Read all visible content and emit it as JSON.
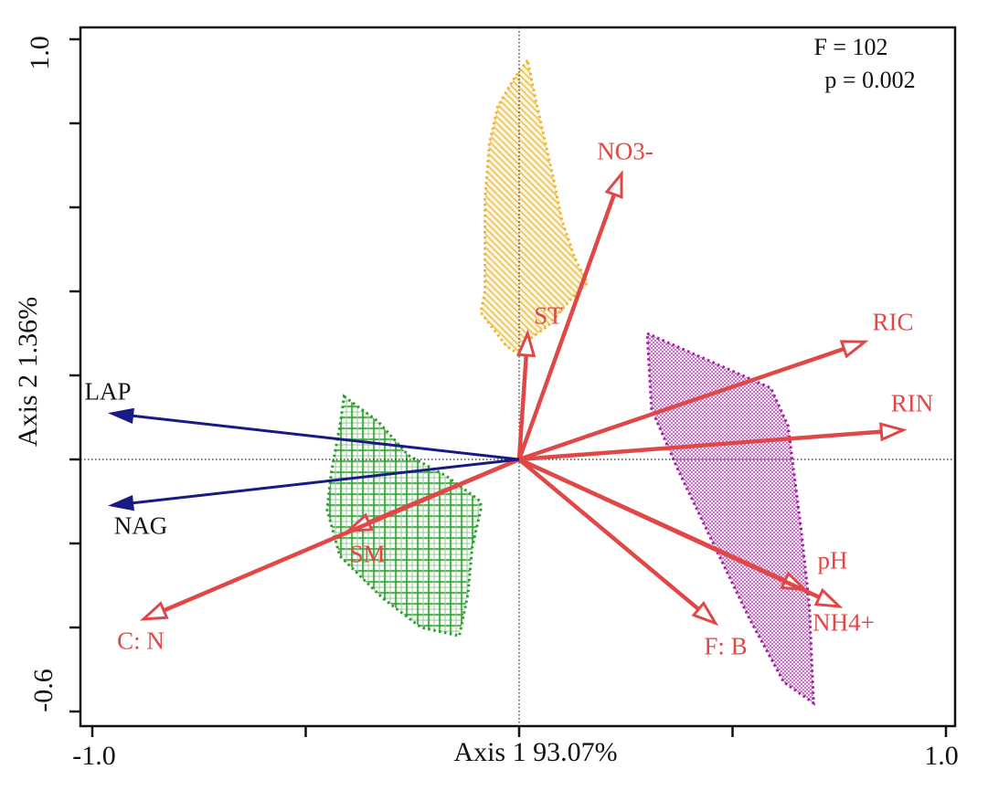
{
  "figure": {
    "x_axis": {
      "title": "Axis 1 93.07%",
      "tick_left": "-1.0",
      "tick_right": "1.0"
    },
    "y_axis": {
      "title": "Axis 2 1.36%",
      "tick_top": "1.0",
      "tick_bottom": "-0.6"
    },
    "annotation": {
      "line1": "F = 102",
      "line2": "p = 0.002"
    }
  },
  "colors": {
    "red_arrow": "#e04848",
    "blue_arrow": "#1a1a85",
    "label_red": "#e04848",
    "label_black": "#141414",
    "yellow_border": "#f0b429",
    "green_border": "#2e9b2e",
    "purple_border": "#a01ca0",
    "frame": "#111111"
  },
  "chart_data": {
    "type": "scatter",
    "subtype": "ordination-biplot",
    "title": "",
    "xlabel": "Axis 1 93.07%",
    "ylabel": "Axis 2 1.36%",
    "xlim": [
      -1.03,
      1.02
    ],
    "ylim": [
      -0.63,
      1.03
    ],
    "x_ticks": [
      -1.0,
      -0.5,
      0.0,
      0.5,
      1.0
    ],
    "x_tick_labels_shown": [
      "-1.0",
      "1.0"
    ],
    "y_ticks": [
      1.0,
      0.8,
      0.6,
      0.4,
      0.2,
      0.0,
      -0.2,
      -0.4,
      -0.6
    ],
    "y_tick_labels_shown": [
      "1.0",
      "-0.6"
    ],
    "grid": false,
    "origin_crosshair_dotted": true,
    "annotations": [
      "F = 102",
      "p = 0.002"
    ],
    "vectors": [
      {
        "name": "NO3-",
        "x": 0.24,
        "y": 0.68,
        "group": "red"
      },
      {
        "name": "ST",
        "x": 0.02,
        "y": 0.3,
        "group": "red"
      },
      {
        "name": "RIC",
        "x": 0.81,
        "y": 0.28,
        "group": "red"
      },
      {
        "name": "RIN",
        "x": 0.9,
        "y": 0.07,
        "group": "red"
      },
      {
        "name": "pH",
        "x": 0.67,
        "y": -0.31,
        "group": "red"
      },
      {
        "name": "NH4+",
        "x": 0.75,
        "y": -0.35,
        "group": "red"
      },
      {
        "name": "F: B",
        "x": 0.46,
        "y": -0.39,
        "group": "red"
      },
      {
        "name": "SM",
        "x": -0.4,
        "y": -0.17,
        "group": "red"
      },
      {
        "name": "C: N",
        "x": -0.88,
        "y": -0.38,
        "group": "red"
      },
      {
        "name": "LAP",
        "x": -0.96,
        "y": 0.11,
        "group": "blue"
      },
      {
        "name": "NAG",
        "x": -0.96,
        "y": -0.11,
        "group": "blue"
      }
    ],
    "hulls": [
      {
        "id": "yellow",
        "border": "#f0b429",
        "pattern": "diagonal-hatch",
        "vertices": [
          [
            0.02,
            0.95
          ],
          [
            -0.01,
            0.91
          ],
          [
            -0.05,
            0.84
          ],
          [
            -0.07,
            0.75
          ],
          [
            -0.08,
            0.62
          ],
          [
            -0.08,
            0.51
          ],
          [
            -0.08,
            0.4
          ],
          [
            -0.09,
            0.35
          ],
          [
            -0.06,
            0.31
          ],
          [
            -0.03,
            0.27
          ],
          [
            0.0,
            0.25
          ],
          [
            0.03,
            0.29
          ],
          [
            0.07,
            0.32
          ],
          [
            0.12,
            0.38
          ],
          [
            0.16,
            0.42
          ],
          [
            0.13,
            0.48
          ],
          [
            0.1,
            0.57
          ],
          [
            0.08,
            0.67
          ],
          [
            0.06,
            0.76
          ],
          [
            0.04,
            0.85
          ]
        ]
      },
      {
        "id": "green",
        "border": "#2e9b2e",
        "pattern": "cross-hatch-plaid",
        "vertices": [
          [
            -0.41,
            0.15
          ],
          [
            -0.33,
            0.09
          ],
          [
            -0.26,
            0.01
          ],
          [
            -0.17,
            -0.04
          ],
          [
            -0.09,
            -0.1
          ],
          [
            -0.09,
            -0.12
          ],
          [
            -0.11,
            -0.21
          ],
          [
            -0.12,
            -0.32
          ],
          [
            -0.14,
            -0.42
          ],
          [
            -0.23,
            -0.4
          ],
          [
            -0.32,
            -0.33
          ],
          [
            -0.37,
            -0.28
          ],
          [
            -0.42,
            -0.23
          ],
          [
            -0.45,
            -0.12
          ],
          [
            -0.44,
            -0.03
          ],
          [
            -0.42,
            0.08
          ]
        ]
      },
      {
        "id": "purple",
        "border": "#a01ca0",
        "pattern": "checker",
        "vertices": [
          [
            0.3,
            0.3
          ],
          [
            0.59,
            0.17
          ],
          [
            0.63,
            0.08
          ],
          [
            0.66,
            -0.16
          ],
          [
            0.68,
            -0.35
          ],
          [
            0.69,
            -0.58
          ],
          [
            0.62,
            -0.53
          ],
          [
            0.54,
            -0.38
          ],
          [
            0.45,
            -0.19
          ],
          [
            0.37,
            -0.02
          ],
          [
            0.31,
            0.12
          ]
        ]
      }
    ]
  }
}
